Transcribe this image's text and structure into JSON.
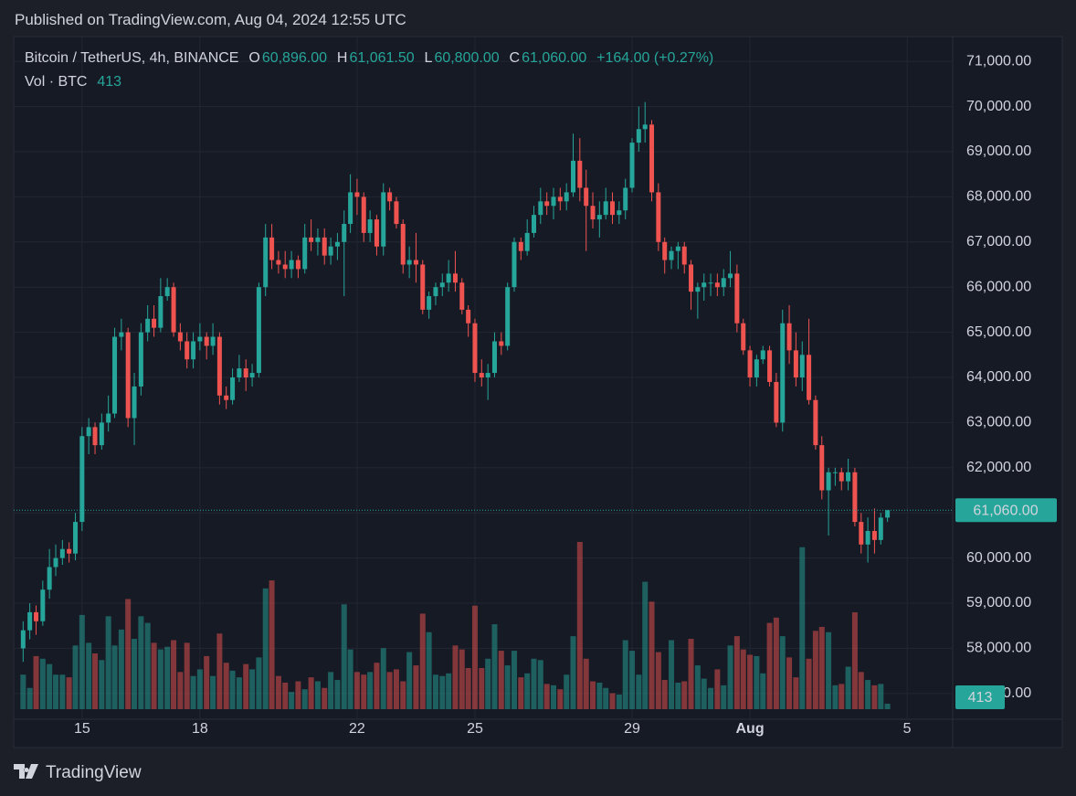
{
  "chart_data": {
    "type": "candlestick",
    "title": "Published on TradingView.com, Aug 04, 2024 12:55 UTC",
    "header": {
      "symbol": "Bitcoin / TetherUS, 4h, BINANCE",
      "open_key": "O",
      "open": "60,896.00",
      "high_key": "H",
      "high": "61,061.50",
      "low_key": "L",
      "low": "60,800.00",
      "close_key": "C",
      "close": "61,060.00",
      "change": "+164.00 (+0.27%)",
      "volume_label": "Vol · BTC"
    },
    "last_price_label": "61,060.00",
    "footer": "TradingView",
    "up_color": "#26a69a",
    "down_color": "#ef5350",
    "xlim": [
      13.26,
      37.16
    ],
    "ylim": [
      56430,
      71550
    ],
    "xticks": [
      15,
      18,
      22,
      25,
      29,
      {
        "value": 32,
        "label": "Aug"
      },
      {
        "value": 36,
        "label": "5"
      }
    ],
    "yticks": [
      {
        "value": 57000,
        "label": "57,000.00"
      },
      {
        "value": 58000,
        "label": "58,000.00"
      },
      {
        "value": 59000,
        "label": "59,000.00"
      },
      {
        "value": 60000,
        "label": "60,000.00"
      },
      {
        "value": 61000,
        "label": "61,000.00"
      },
      {
        "value": 62000,
        "label": "62,000.00"
      },
      {
        "value": 63000,
        "label": "63,000.00"
      },
      {
        "value": 64000,
        "label": "64,000.00"
      },
      {
        "value": 65000,
        "label": "65,000.00"
      },
      {
        "value": 66000,
        "label": "66,000.00"
      },
      {
        "value": 67000,
        "label": "67,000.00"
      },
      {
        "value": 68000,
        "label": "68,000.00"
      },
      {
        "value": 69000,
        "label": "69,000.00"
      },
      {
        "value": 70000,
        "label": "70,000.00"
      },
      {
        "value": 71000,
        "label": "71,000.00"
      }
    ],
    "grid": true,
    "x": [
      13.5,
      13.67,
      13.83,
      14,
      14.17,
      14.33,
      14.5,
      14.67,
      14.83,
      15,
      15.17,
      15.33,
      15.5,
      15.67,
      15.83,
      16,
      16.17,
      16.33,
      16.5,
      16.67,
      16.83,
      17,
      17.17,
      17.33,
      17.5,
      17.67,
      17.83,
      18,
      18.17,
      18.33,
      18.5,
      18.67,
      18.83,
      19,
      19.17,
      19.33,
      19.5,
      19.67,
      19.83,
      20,
      20.17,
      20.33,
      20.5,
      20.67,
      20.83,
      21,
      21.17,
      21.33,
      21.5,
      21.67,
      21.83,
      22,
      22.17,
      22.33,
      22.5,
      22.67,
      22.83,
      23,
      23.17,
      23.33,
      23.5,
      23.67,
      23.83,
      24,
      24.17,
      24.33,
      24.5,
      24.67,
      24.83,
      25,
      25.17,
      25.33,
      25.5,
      25.67,
      25.83,
      26,
      26.17,
      26.33,
      26.5,
      26.67,
      26.83,
      27,
      27.17,
      27.33,
      27.5,
      27.67,
      27.83,
      28,
      28.17,
      28.33,
      28.5,
      28.67,
      28.83,
      29,
      29.17,
      29.33,
      29.5,
      29.67,
      29.83,
      30,
      30.17,
      30.33,
      30.5,
      30.67,
      30.83,
      31,
      31.17,
      31.33,
      31.5,
      31.67,
      31.83,
      32,
      32.17,
      32.33,
      32.5,
      32.67,
      32.83,
      33,
      33.17,
      33.33,
      33.5,
      33.67,
      33.83,
      34,
      34.17,
      34.33,
      34.5,
      34.67,
      34.83,
      35,
      35.17,
      35.33,
      35.5
    ],
    "open": [
      58000,
      58400,
      58800,
      58600,
      59300,
      59800,
      60000,
      60200,
      60100,
      60800,
      62700,
      62900,
      62500,
      63000,
      63200,
      64900,
      65000,
      63100,
      63800,
      65000,
      65300,
      65100,
      65800,
      66000,
      65000,
      64800,
      64400,
      64800,
      64900,
      64700,
      64900,
      63600,
      63500,
      64000,
      64200,
      64000,
      64100,
      66000,
      67100,
      66600,
      66500,
      66400,
      66600,
      66400,
      67100,
      67000,
      67100,
      66700,
      66900,
      67000,
      67400,
      68100,
      68000,
      67200,
      67500,
      66900,
      68100,
      67900,
      67400,
      66500,
      66600,
      66500,
      65500,
      65800,
      66000,
      66100,
      66300,
      66100,
      65500,
      65200,
      64100,
      64000,
      64100,
      64800,
      64700,
      66000,
      67000,
      66800,
      67200,
      67600,
      67900,
      67800,
      68000,
      67900,
      68100,
      68800,
      68200,
      67800,
      67500,
      67600,
      67900,
      67600,
      67700,
      68200,
      69200,
      69500,
      69600,
      68100,
      67000,
      66600,
      66800,
      66900,
      66500,
      65900,
      66000,
      66100,
      66100,
      66000,
      66200,
      66300,
      65200,
      64600,
      64000,
      64400,
      64600,
      63900,
      63000,
      65200,
      64600,
      64000,
      64500,
      63500,
      62500,
      61500,
      61900,
      61900,
      61700,
      61900,
      60800,
      60300,
      60600,
      60400,
      60896
    ],
    "high": [
      58600,
      59000,
      58950,
      59500,
      60200,
      60300,
      60400,
      60350,
      61000,
      62900,
      63100,
      63000,
      63200,
      63600,
      65100,
      65300,
      65100,
      64100,
      65200,
      65600,
      65600,
      66200,
      66200,
      66100,
      65200,
      65000,
      65000,
      65200,
      65000,
      65200,
      65000,
      63800,
      64200,
      64500,
      64400,
      64300,
      66100,
      67400,
      67400,
      66800,
      66800,
      66800,
      66700,
      67400,
      67500,
      67300,
      67300,
      67100,
      67200,
      67700,
      68500,
      68400,
      68100,
      67700,
      67600,
      68300,
      68200,
      68000,
      67500,
      66900,
      67200,
      66600,
      65900,
      66100,
      66300,
      66600,
      66800,
      66200,
      65600,
      65300,
      64400,
      64300,
      65000,
      65000,
      66100,
      67100,
      67100,
      67500,
      67800,
      68200,
      68100,
      68200,
      68200,
      68300,
      69400,
      69300,
      68600,
      68100,
      67900,
      68200,
      68100,
      67900,
      68400,
      69300,
      70000,
      70100,
      69700,
      68300,
      67100,
      66900,
      67000,
      67000,
      66600,
      66100,
      66300,
      66300,
      66300,
      66400,
      66800,
      66500,
      65300,
      64700,
      64500,
      64700,
      64700,
      64100,
      65500,
      65600,
      65000,
      64800,
      65300,
      63600,
      62700,
      62000,
      62000,
      62000,
      62200,
      62000,
      61000,
      60900,
      61100,
      61000,
      61061.5
    ],
    "low": [
      57700,
      58200,
      58300,
      58500,
      59100,
      59600,
      59850,
      59900,
      59950,
      60600,
      62300,
      62300,
      62400,
      62800,
      63100,
      64600,
      62900,
      62500,
      63600,
      64800,
      64900,
      65000,
      65700,
      64900,
      64600,
      64200,
      64200,
      64600,
      64400,
      64500,
      63400,
      63300,
      63400,
      63900,
      63700,
      63800,
      64000,
      65800,
      66400,
      66300,
      66200,
      66200,
      66200,
      66300,
      66800,
      66700,
      66500,
      66500,
      66600,
      65800,
      67200,
      67600,
      67000,
      67000,
      66700,
      66700,
      67700,
      67300,
      66300,
      66200,
      66100,
      65400,
      65300,
      65600,
      65800,
      65900,
      65900,
      65400,
      64900,
      63900,
      63800,
      63500,
      64000,
      64500,
      64600,
      65900,
      66600,
      66700,
      67100,
      67400,
      67600,
      67500,
      67700,
      67700,
      68000,
      67900,
      66800,
      67300,
      67100,
      67500,
      67400,
      67400,
      67500,
      68100,
      69000,
      69200,
      67900,
      66800,
      66300,
      66400,
      66400,
      66300,
      65500,
      65300,
      65700,
      65800,
      65800,
      65800,
      66000,
      65000,
      64500,
      63800,
      63800,
      64300,
      63800,
      62900,
      62800,
      64300,
      63800,
      63700,
      63400,
      62400,
      61300,
      60500,
      61600,
      61500,
      61500,
      60700,
      60100,
      59900,
      60100,
      60300,
      60800
    ],
    "close": [
      58400,
      58800,
      58600,
      59300,
      59800,
      60000,
      60200,
      60100,
      60800,
      62700,
      62900,
      62500,
      63000,
      63200,
      64900,
      65000,
      63100,
      63800,
      65000,
      65300,
      65100,
      65800,
      66000,
      65000,
      64800,
      64400,
      64800,
      64900,
      64700,
      64900,
      63600,
      63500,
      64000,
      64200,
      64000,
      64100,
      66000,
      67100,
      66600,
      66500,
      66400,
      66600,
      66400,
      67100,
      67000,
      67100,
      66700,
      66900,
      67000,
      67400,
      68100,
      68000,
      67200,
      67500,
      66900,
      68100,
      67900,
      67400,
      66500,
      66600,
      66500,
      65500,
      65800,
      66000,
      66100,
      66300,
      66100,
      65500,
      65200,
      64100,
      64000,
      64100,
      64800,
      64700,
      66000,
      67000,
      66800,
      67200,
      67600,
      67900,
      67800,
      68000,
      67900,
      68100,
      68800,
      68200,
      67800,
      67500,
      67600,
      67900,
      67600,
      67700,
      68200,
      69200,
      69500,
      69600,
      68100,
      67000,
      66600,
      66800,
      66900,
      66500,
      65900,
      66000,
      66100,
      66100,
      66000,
      66200,
      66300,
      65200,
      64600,
      64000,
      64400,
      64600,
      63900,
      63000,
      65200,
      64600,
      64000,
      64500,
      63500,
      62500,
      61500,
      61900,
      61900,
      61700,
      61900,
      60800,
      60300,
      60600,
      60400,
      60896,
      61060
    ],
    "volume": [
      2600,
      1600,
      4000,
      3800,
      3400,
      2600,
      2600,
      2400,
      4800,
      7100,
      5000,
      4200,
      3700,
      7000,
      4800,
      6000,
      8300,
      5300,
      7000,
      6500,
      5000,
      4500,
      4700,
      5200,
      2800,
      5000,
      2500,
      3000,
      4000,
      2500,
      5700,
      3500,
      2900,
      2400,
      3400,
      3000,
      3900,
      9100,
      9700,
      2500,
      2000,
      1300,
      2100,
      1500,
      2400,
      2100,
      1600,
      2800,
      2200,
      7900,
      4500,
      2800,
      2600,
      2800,
      3500,
      4600,
      2800,
      3000,
      2100,
      4300,
      3300,
      7200,
      5800,
      2600,
      2500,
      2700,
      4800,
      4500,
      3100,
      7800,
      3100,
      3800,
      6400,
      4400,
      3300,
      4400,
      2400,
      2700,
      3800,
      3700,
      1900,
      1800,
      1500,
      2600,
      5500,
      12600,
      3800,
      2100,
      2000,
      1600,
      1200,
      1100,
      5200,
      4400,
      2600,
      9600,
      8100,
      4300,
      2200,
      5200,
      2000,
      2100,
      5300,
      3300,
      2300,
      1600,
      3000,
      1800,
      4800,
      5500,
      4500,
      4100,
      4000,
      2700,
      6500,
      6900,
      5500,
      3900,
      2400,
      12200,
      3800,
      5900,
      6200,
      5800,
      1800,
      1900,
      3200,
      7300,
      2800,
      2200,
      1800,
      1900,
      413
    ]
  }
}
